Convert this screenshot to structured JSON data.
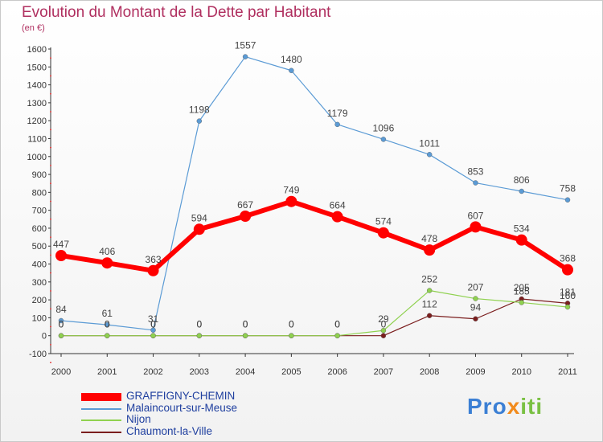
{
  "title": "Evolution du Montant de la Dette par Habitant",
  "subtitle": "(en €)",
  "logo": {
    "part1": "Pro",
    "part2": "x",
    "part3": "iti"
  },
  "chart_data": {
    "type": "line",
    "title": "Evolution du Montant de la Dette par Habitant",
    "subtitle": "(en €)",
    "xlabel": "",
    "ylabel": "",
    "ylim": [
      -100,
      1600
    ],
    "ytick_step": 100,
    "grid": false,
    "legend_position": "bottom-left",
    "categories": [
      "2000",
      "2001",
      "2002",
      "2003",
      "2004",
      "2005",
      "2006",
      "2007",
      "2008",
      "2009",
      "2010",
      "2011"
    ],
    "series": [
      {
        "name": "GRAFFIGNY-CHEMIN",
        "color": "#ff0000",
        "values": [
          447,
          406,
          363,
          594,
          667,
          749,
          664,
          574,
          478,
          607,
          534,
          368
        ]
      },
      {
        "name": "Malaincourt-sur-Meuse",
        "color": "#5b9bd5",
        "values": [
          84,
          61,
          31,
          1198,
          1557,
          1480,
          1179,
          1096,
          1011,
          853,
          806,
          758
        ]
      },
      {
        "name": "Nijon",
        "color": "#8fd14f",
        "values": [
          0,
          0,
          0,
          0,
          0,
          0,
          0,
          29,
          252,
          207,
          185,
          160
        ]
      },
      {
        "name": "Chaumont-la-Ville",
        "color": "#7b1e1e",
        "values": [
          0,
          0,
          0,
          0,
          0,
          0,
          0,
          0,
          112,
          94,
          205,
          181
        ]
      }
    ]
  }
}
